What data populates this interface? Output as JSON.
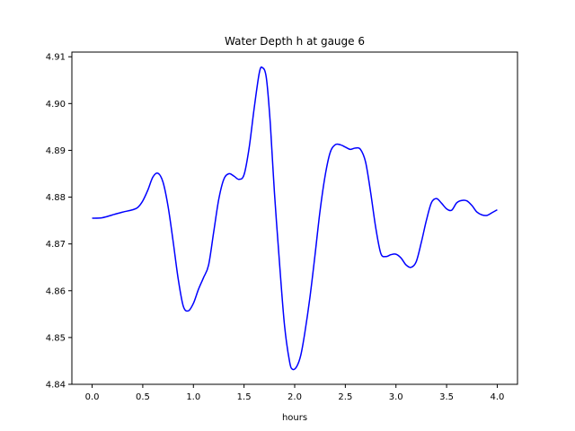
{
  "chart_data": {
    "type": "line",
    "title": "Water Depth h at gauge 6",
    "xlabel": "hours",
    "ylabel": "",
    "xlim": [
      -0.2,
      4.2
    ],
    "ylim": [
      4.84,
      4.911
    ],
    "xticks": [
      0.0,
      0.5,
      1.0,
      1.5,
      2.0,
      2.5,
      3.0,
      3.5,
      4.0
    ],
    "xtick_labels": [
      "0.0",
      "0.5",
      "1.0",
      "1.5",
      "2.0",
      "2.5",
      "3.0",
      "3.5",
      "4.0"
    ],
    "yticks": [
      4.84,
      4.85,
      4.86,
      4.87,
      4.88,
      4.89,
      4.9,
      4.91
    ],
    "ytick_labels": [
      "4.84",
      "4.85",
      "4.86",
      "4.87",
      "4.88",
      "4.89",
      "4.90",
      "4.91"
    ],
    "grid": false,
    "legend": "none",
    "series": [
      {
        "color": "#0000ff",
        "x": [
          0.0,
          0.1,
          0.2,
          0.3,
          0.4,
          0.45,
          0.5,
          0.55,
          0.6,
          0.65,
          0.7,
          0.75,
          0.8,
          0.85,
          0.9,
          0.95,
          1.0,
          1.05,
          1.1,
          1.15,
          1.2,
          1.25,
          1.3,
          1.35,
          1.4,
          1.45,
          1.5,
          1.55,
          1.6,
          1.65,
          1.68,
          1.72,
          1.76,
          1.8,
          1.85,
          1.9,
          1.95,
          1.98,
          2.02,
          2.06,
          2.1,
          2.15,
          2.2,
          2.25,
          2.3,
          2.35,
          2.4,
          2.45,
          2.5,
          2.55,
          2.6,
          2.65,
          2.7,
          2.75,
          2.8,
          2.85,
          2.9,
          2.95,
          3.0,
          3.05,
          3.1,
          3.15,
          3.2,
          3.25,
          3.3,
          3.35,
          3.4,
          3.45,
          3.5,
          3.55,
          3.6,
          3.65,
          3.7,
          3.75,
          3.8,
          3.85,
          3.9,
          3.95,
          4.0
        ],
        "y": [
          4.8755,
          4.8756,
          4.8762,
          4.8768,
          4.8773,
          4.8778,
          4.8792,
          4.8815,
          4.8843,
          4.8851,
          4.8832,
          4.878,
          4.8705,
          4.8625,
          4.8567,
          4.8557,
          4.8573,
          4.8603,
          4.8628,
          4.8655,
          4.8725,
          4.8795,
          4.8838,
          4.885,
          4.8845,
          4.8838,
          4.8848,
          4.8905,
          4.899,
          4.9065,
          4.9077,
          4.9055,
          4.8955,
          4.881,
          4.866,
          4.8525,
          4.8448,
          4.8432,
          4.8438,
          4.8462,
          4.851,
          4.8585,
          4.8675,
          4.877,
          4.8845,
          4.8895,
          4.8912,
          4.8912,
          4.8907,
          4.8902,
          4.8905,
          4.8902,
          4.8875,
          4.881,
          4.8735,
          4.868,
          4.8673,
          4.8677,
          4.8678,
          4.867,
          4.8655,
          4.865,
          4.8662,
          4.8703,
          4.875,
          4.8788,
          4.8797,
          4.8787,
          4.8775,
          4.8772,
          4.8788,
          4.8793,
          4.8792,
          4.8782,
          4.8768,
          4.8762,
          4.8761,
          4.8767,
          4.8773
        ]
      }
    ]
  }
}
